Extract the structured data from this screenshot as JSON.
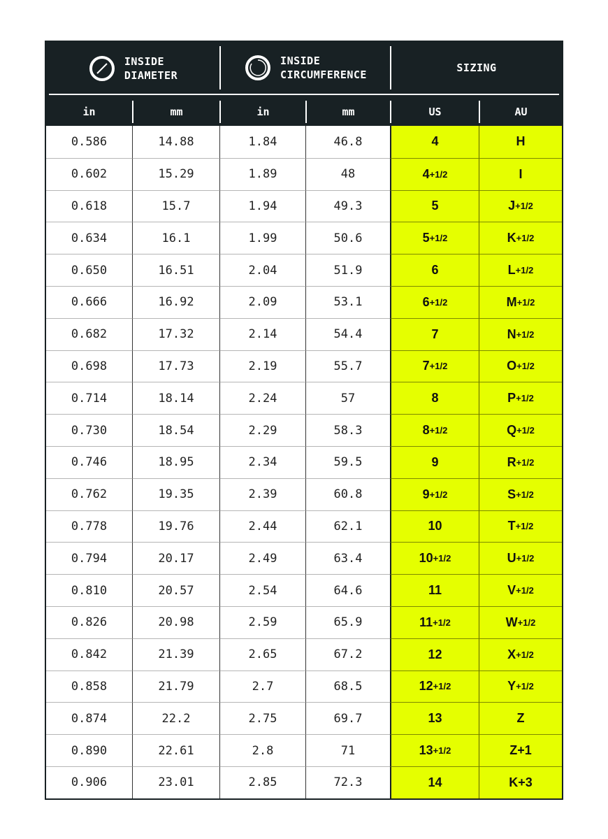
{
  "header": {
    "groups": [
      {
        "line1": "INSIDE",
        "line2": "DIAMETER",
        "icon": "diameter-icon"
      },
      {
        "line1": "INSIDE",
        "line2": "CIRCUMFERENCE",
        "icon": "circumference-icon"
      },
      {
        "line1": "SIZING",
        "line2": ""
      }
    ],
    "columns": [
      "in",
      "mm",
      "in",
      "mm",
      "US",
      "AU"
    ]
  },
  "colors": {
    "header_bg": "#182124",
    "sizing_bg": "#e5ff00"
  },
  "rows": [
    {
      "d_in": "0.586",
      "d_mm": "14.88",
      "c_in": "1.84",
      "c_mm": "46.8",
      "us": "4",
      "us_frac": "",
      "au": "H",
      "au_frac": ""
    },
    {
      "d_in": "0.602",
      "d_mm": "15.29",
      "c_in": "1.89",
      "c_mm": "48",
      "us": "4",
      "us_frac": "+1/2",
      "au": "I",
      "au_frac": ""
    },
    {
      "d_in": "0.618",
      "d_mm": "15.7",
      "c_in": "1.94",
      "c_mm": "49.3",
      "us": "5",
      "us_frac": "",
      "au": "J",
      "au_frac": "+1/2"
    },
    {
      "d_in": "0.634",
      "d_mm": "16.1",
      "c_in": "1.99",
      "c_mm": "50.6",
      "us": "5",
      "us_frac": "+1/2",
      "au": "K",
      "au_frac": "+1/2"
    },
    {
      "d_in": "0.650",
      "d_mm": "16.51",
      "c_in": "2.04",
      "c_mm": "51.9",
      "us": "6",
      "us_frac": "",
      "au": "L",
      "au_frac": "+1/2"
    },
    {
      "d_in": "0.666",
      "d_mm": "16.92",
      "c_in": "2.09",
      "c_mm": "53.1",
      "us": "6",
      "us_frac": "+1/2",
      "au": "M",
      "au_frac": "+1/2"
    },
    {
      "d_in": "0.682",
      "d_mm": "17.32",
      "c_in": "2.14",
      "c_mm": "54.4",
      "us": "7",
      "us_frac": "",
      "au": "N",
      "au_frac": "+1/2"
    },
    {
      "d_in": "0.698",
      "d_mm": "17.73",
      "c_in": "2.19",
      "c_mm": "55.7",
      "us": "7",
      "us_frac": "+1/2",
      "au": "O",
      "au_frac": "+1/2"
    },
    {
      "d_in": "0.714",
      "d_mm": "18.14",
      "c_in": "2.24",
      "c_mm": "57",
      "us": "8",
      "us_frac": "",
      "au": "P",
      "au_frac": "+1/2"
    },
    {
      "d_in": "0.730",
      "d_mm": "18.54",
      "c_in": "2.29",
      "c_mm": "58.3",
      "us": "8",
      "us_frac": "+1/2",
      "au": "Q",
      "au_frac": "+1/2"
    },
    {
      "d_in": "0.746",
      "d_mm": "18.95",
      "c_in": "2.34",
      "c_mm": "59.5",
      "us": "9",
      "us_frac": "",
      "au": "R",
      "au_frac": "+1/2"
    },
    {
      "d_in": "0.762",
      "d_mm": "19.35",
      "c_in": "2.39",
      "c_mm": "60.8",
      "us": "9",
      "us_frac": "+1/2",
      "au": "S",
      "au_frac": "+1/2"
    },
    {
      "d_in": "0.778",
      "d_mm": "19.76",
      "c_in": "2.44",
      "c_mm": "62.1",
      "us": "10",
      "us_frac": "",
      "au": "T",
      "au_frac": "+1/2"
    },
    {
      "d_in": "0.794",
      "d_mm": "20.17",
      "c_in": "2.49",
      "c_mm": "63.4",
      "us": "10",
      "us_frac": "+1/2",
      "au": "U",
      "au_frac": "+1/2"
    },
    {
      "d_in": "0.810",
      "d_mm": "20.57",
      "c_in": "2.54",
      "c_mm": "64.6",
      "us": "11",
      "us_frac": "",
      "au": "V",
      "au_frac": "+1/2"
    },
    {
      "d_in": "0.826",
      "d_mm": "20.98",
      "c_in": "2.59",
      "c_mm": "65.9",
      "us": "11",
      "us_frac": "+1/2",
      "au": "W",
      "au_frac": "+1/2"
    },
    {
      "d_in": "0.842",
      "d_mm": "21.39",
      "c_in": "2.65",
      "c_mm": "67.2",
      "us": "12",
      "us_frac": "",
      "au": "X",
      "au_frac": "+1/2"
    },
    {
      "d_in": "0.858",
      "d_mm": "21.79",
      "c_in": "2.7",
      "c_mm": "68.5",
      "us": "12",
      "us_frac": "+1/2",
      "au": "Y",
      "au_frac": "+1/2"
    },
    {
      "d_in": "0.874",
      "d_mm": "22.2",
      "c_in": "2.75",
      "c_mm": "69.7",
      "us": "13",
      "us_frac": "",
      "au": "Z",
      "au_frac": ""
    },
    {
      "d_in": "0.890",
      "d_mm": "22.61",
      "c_in": "2.8",
      "c_mm": "71",
      "us": "13",
      "us_frac": "+1/2",
      "au": "Z+1",
      "au_frac": ""
    },
    {
      "d_in": "0.906",
      "d_mm": "23.01",
      "c_in": "2.85",
      "c_mm": "72.3",
      "us": "14",
      "us_frac": "",
      "au": "K+3",
      "au_frac": ""
    }
  ]
}
